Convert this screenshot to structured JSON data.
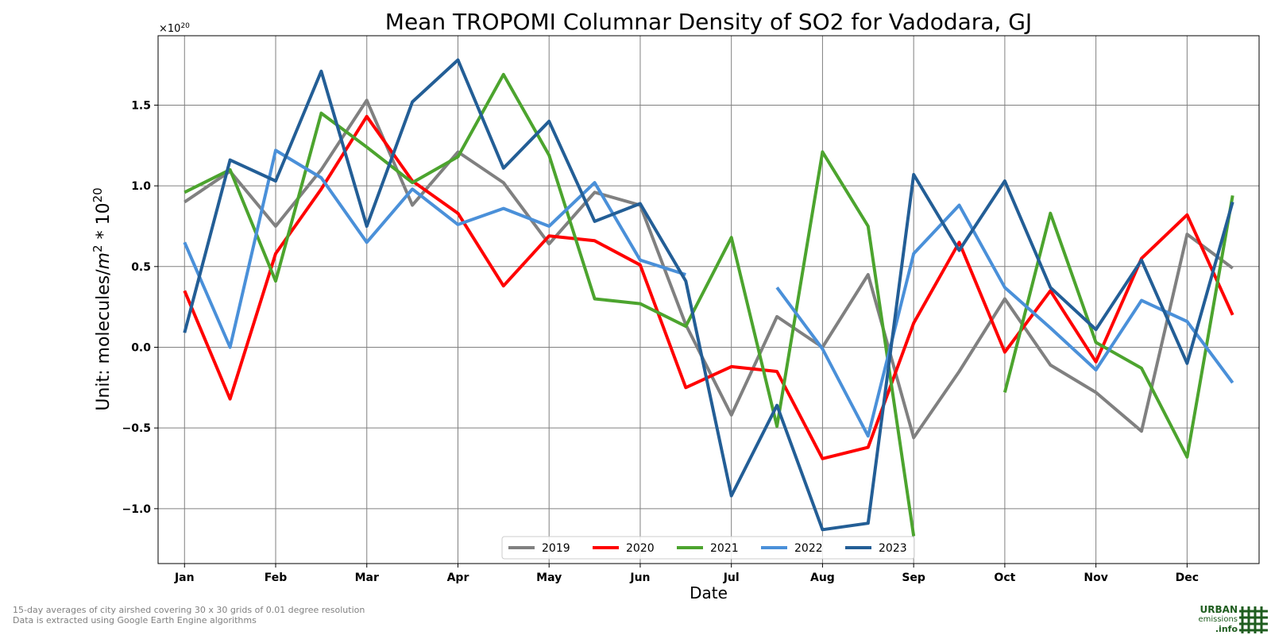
{
  "chart_data": {
    "type": "line",
    "title": "Mean TROPOMI Columnar Density of SO2 for Vadodara, GJ",
    "xlabel": "Date",
    "ylabel_prefix": "Unit: molecules/",
    "ylabel_m": "m",
    "ylabel_exp": "2",
    "ylabel_mid": " * 10",
    "ylabel_exp2": "20",
    "offset_base": "×10",
    "offset_exp": "20",
    "x_tick_labels": [
      "Jan",
      "Feb",
      "Mar",
      "Apr",
      "May",
      "Jun",
      "Jul",
      "Aug",
      "Sep",
      "Oct",
      "Nov",
      "Dec"
    ],
    "y_ticks": [
      -1.0,
      -0.5,
      0.0,
      0.5,
      1.0,
      1.5
    ],
    "y_tick_labels": [
      "−1.0",
      "−0.5",
      "0.0",
      "0.5",
      "1.0",
      "1.5"
    ],
    "ylim": [
      -1.34,
      1.93
    ],
    "xlim": [
      -0.58,
      23.58
    ],
    "x_unit": "15-day period index (0 = Jan 1, 2 = Feb 1, ...)",
    "grid": true,
    "legend_position": "bottom-center",
    "series": [
      {
        "name": "2019",
        "color": "#808080",
        "values": [
          0.9,
          1.09,
          0.75,
          1.1,
          1.53,
          0.88,
          1.21,
          1.02,
          0.64,
          0.96,
          0.88,
          0.14,
          -0.42,
          0.19,
          0.0,
          0.45,
          -0.56,
          -0.15,
          0.3,
          -0.11,
          -0.28,
          -0.52,
          0.7,
          0.49
        ]
      },
      {
        "name": "2020",
        "color": "#ff0000",
        "values": [
          0.35,
          -0.32,
          0.58,
          0.98,
          1.43,
          1.03,
          0.83,
          0.38,
          0.69,
          0.66,
          0.51,
          -0.25,
          -0.12,
          -0.15,
          -0.69,
          -0.62,
          0.15,
          0.65,
          -0.03,
          0.35,
          -0.09,
          0.55,
          0.82,
          0.2
        ]
      },
      {
        "name": "2021",
        "color": "#4ca42e",
        "values": [
          0.96,
          1.1,
          0.41,
          1.45,
          1.24,
          1.02,
          1.18,
          1.69,
          1.19,
          0.3,
          0.27,
          0.13,
          0.68,
          -0.49,
          1.21,
          0.75,
          -1.17,
          null,
          -0.28,
          0.83,
          0.03,
          -0.13,
          -0.68,
          0.94
        ]
      },
      {
        "name": "2022",
        "color": "#4a90d9",
        "values": [
          0.65,
          0.0,
          1.22,
          1.05,
          0.65,
          0.98,
          0.76,
          0.86,
          0.75,
          1.02,
          0.54,
          0.45,
          null,
          0.37,
          -0.01,
          -0.55,
          0.58,
          0.88,
          0.37,
          0.12,
          -0.14,
          0.29,
          0.16,
          -0.22
        ]
      },
      {
        "name": "2023",
        "color": "#235e96",
        "values": [
          0.09,
          1.16,
          1.03,
          1.71,
          0.75,
          1.52,
          1.78,
          1.11,
          1.4,
          0.78,
          0.89,
          0.41,
          -0.92,
          -0.36,
          -1.13,
          -1.09,
          1.07,
          0.6,
          1.03,
          0.37,
          0.11,
          0.54,
          -0.1,
          0.9
        ]
      }
    ]
  },
  "footnotes": {
    "line1": "15-day averages of city airshed covering 30 x 30 grids of 0.01 degree resolution",
    "line2": "Data is extracted using Google Earth Engine algorithms"
  },
  "logo": {
    "line1": "URBAN",
    "line2": "emissions",
    "line3": ".info",
    "color": "#1f5d1f"
  }
}
